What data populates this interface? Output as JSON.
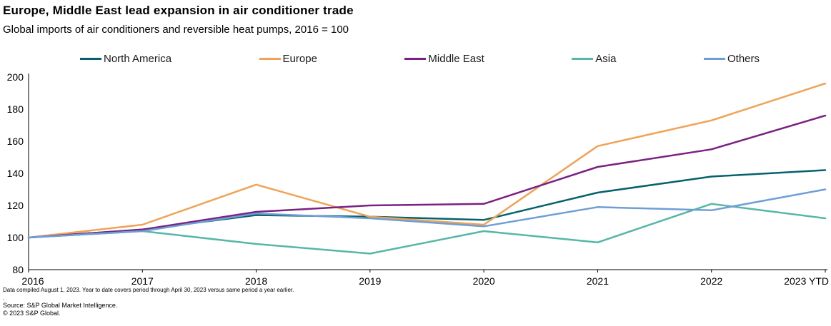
{
  "title": "Europe, Middle East lead expansion in air conditioner trade",
  "subtitle": "Global imports of air conditioners and reversible heat pumps, 2016 = 100",
  "footnotes": [
    "Data compiled August 1, 2023. Year to date covers period through April 30, 2023 versus same period a year earlier.",
    ".",
    "Source: S&P Global Market Intelligence.",
    "© 2023 S&P Global."
  ],
  "chart_data": {
    "type": "line",
    "title": "Europe, Middle East lead expansion in air conditioner trade",
    "subtitle": "Global imports of air conditioners and reversible heat pumps, 2016 = 100",
    "categories": [
      "2016",
      "2017",
      "2018",
      "2019",
      "2020",
      "2021",
      "2022",
      "2023 YTD"
    ],
    "series": [
      {
        "name": "North America",
        "color": "#06616d",
        "values": [
          100,
          105,
          114,
          113,
          111,
          128,
          138,
          142
        ]
      },
      {
        "name": "Europe",
        "color": "#f0a355",
        "values": [
          100,
          108,
          133,
          113,
          108,
          157,
          173,
          196
        ]
      },
      {
        "name": "Middle East",
        "color": "#7a2182",
        "values": [
          100,
          105,
          116,
          120,
          121,
          144,
          155,
          176
        ]
      },
      {
        "name": "Asia",
        "color": "#56b7a6",
        "values": [
          100,
          104,
          96,
          90,
          104,
          97,
          121,
          112
        ]
      },
      {
        "name": "Others",
        "color": "#6e9ed6",
        "values": [
          100,
          104,
          115,
          112,
          107,
          119,
          117,
          130
        ]
      }
    ],
    "xlabel": "",
    "ylabel": "",
    "ylim": [
      80,
      200
    ],
    "yticks": [
      80,
      100,
      120,
      140,
      160,
      180,
      200
    ],
    "grid": false,
    "legend_position": "top"
  }
}
